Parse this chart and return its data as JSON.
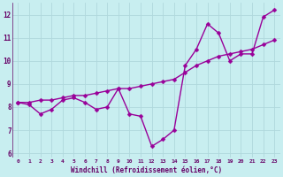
{
  "xlabel": "Windchill (Refroidissement éolien,°C)",
  "background_color": "#c8eef0",
  "line_color": "#990099",
  "grid_color": "#b0d8dc",
  "text_color": "#660066",
  "xlim": [
    -0.5,
    23.5
  ],
  "ylim": [
    5.8,
    12.5
  ],
  "xticks": [
    0,
    1,
    2,
    3,
    4,
    5,
    6,
    7,
    8,
    9,
    10,
    11,
    12,
    13,
    14,
    15,
    16,
    17,
    18,
    19,
    20,
    21,
    22,
    23
  ],
  "yticks": [
    6,
    7,
    8,
    9,
    10,
    11,
    12
  ],
  "series1_x": [
    0,
    1,
    2,
    3,
    4,
    5,
    6,
    7,
    8,
    9,
    10,
    11,
    12,
    13,
    14,
    15,
    16,
    17,
    18,
    19,
    20,
    21,
    22,
    23
  ],
  "series1_y": [
    8.2,
    8.1,
    7.7,
    7.9,
    8.3,
    8.4,
    8.2,
    7.9,
    8.0,
    8.8,
    7.7,
    7.6,
    6.3,
    6.6,
    7.0,
    9.8,
    10.5,
    11.6,
    11.2,
    10.0,
    10.3,
    10.3,
    11.9,
    12.2
  ],
  "series2_x": [
    0,
    1,
    2,
    3,
    4,
    5,
    6,
    7,
    8,
    9,
    10,
    11,
    12,
    13,
    14,
    15,
    16,
    17,
    18,
    19,
    20,
    21,
    22,
    23
  ],
  "series2_y": [
    8.2,
    8.2,
    8.3,
    8.3,
    8.4,
    8.5,
    8.5,
    8.6,
    8.7,
    8.8,
    8.8,
    8.9,
    9.0,
    9.1,
    9.2,
    9.5,
    9.8,
    10.0,
    10.2,
    10.3,
    10.4,
    10.5,
    10.7,
    10.9
  ],
  "markersize": 2.5,
  "linewidth": 1.0
}
